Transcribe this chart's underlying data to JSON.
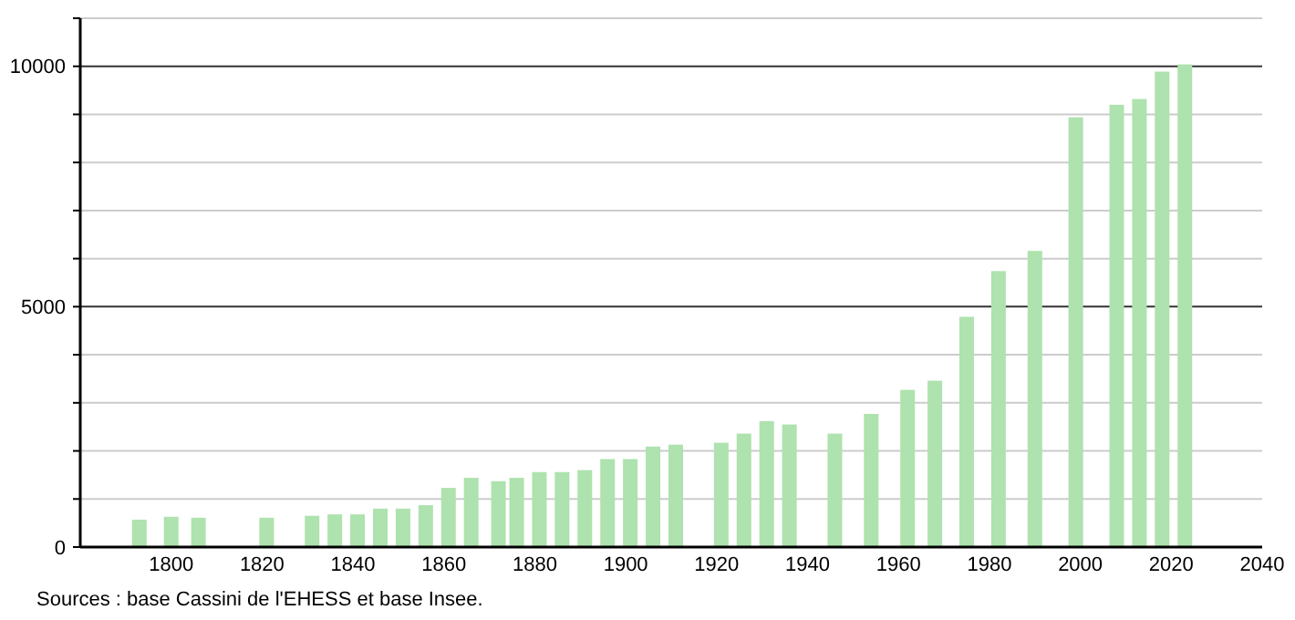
{
  "chart_data": {
    "type": "bar",
    "x": [
      1793,
      1800,
      1806,
      1821,
      1831,
      1836,
      1841,
      1846,
      1851,
      1856,
      1861,
      1866,
      1872,
      1876,
      1881,
      1886,
      1891,
      1896,
      1901,
      1906,
      1911,
      1921,
      1926,
      1931,
      1936,
      1946,
      1954,
      1962,
      1968,
      1975,
      1982,
      1990,
      1999,
      2008,
      2013,
      2018,
      2023
    ],
    "values": [
      570,
      630,
      610,
      610,
      650,
      680,
      680,
      800,
      800,
      870,
      1230,
      1440,
      1370,
      1440,
      1560,
      1560,
      1600,
      1830,
      1830,
      2090,
      2130,
      2170,
      2360,
      2620,
      2550,
      2360,
      2770,
      3270,
      3460,
      4790,
      5740,
      6160,
      8940,
      9200,
      9320,
      9890,
      10040
    ],
    "color": "#aee2ae",
    "xlim": [
      1780,
      2040
    ],
    "xticks": [
      1800,
      1820,
      1840,
      1860,
      1880,
      1900,
      1920,
      1940,
      1960,
      1980,
      2000,
      2020,
      2040
    ],
    "ylim": [
      0,
      11000
    ],
    "yticks": [
      0,
      {
        "value": 1000,
        "label": null
      },
      {
        "value": 2000,
        "label": null
      },
      {
        "value": 3000,
        "label": null
      },
      {
        "value": 4000,
        "label": null
      },
      5000,
      {
        "value": 6000,
        "label": null
      },
      {
        "value": 7000,
        "label": null
      },
      {
        "value": 8000,
        "label": null
      },
      {
        "value": 9000,
        "label": null
      },
      10000,
      {
        "value": 11000,
        "label": null
      }
    ],
    "grid": "y",
    "annotations": [
      "Sources : base Cassini de l'EHESS et base Insee."
    ]
  }
}
